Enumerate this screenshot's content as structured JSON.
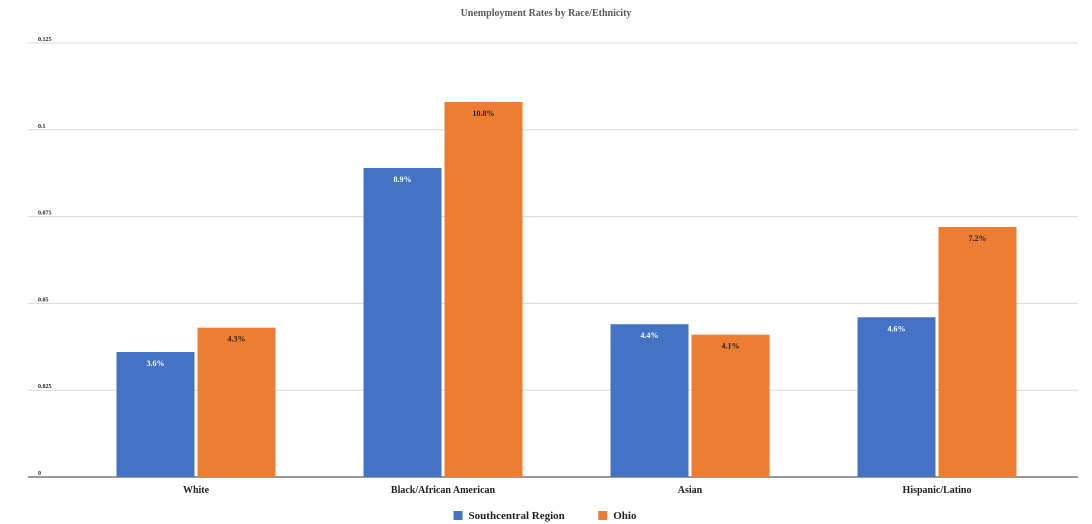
{
  "chart_data": {
    "type": "bar",
    "title": "Unemployment Rates by Race/Ethnicity",
    "xlabel": "",
    "ylabel": "",
    "categories": [
      "White",
      "Black/African American",
      "Asian",
      "Hispanic/Latino"
    ],
    "series": [
      {
        "name": "Southcentral Region",
        "values": [
          0.036,
          0.089,
          0.044,
          0.046
        ],
        "labels": [
          "3.6%",
          "8.9%",
          "4.4%",
          "4.6%"
        ],
        "color": "#4472c4",
        "label_color": "#ffffff"
      },
      {
        "name": "Ohio",
        "values": [
          0.043,
          0.108,
          0.041,
          0.072
        ],
        "labels": [
          "4.3%",
          "10.8%",
          "4.1%",
          "7.2%"
        ],
        "color": "#ed7d31",
        "label_color": "#222222"
      }
    ],
    "ylim": [
      0,
      0.125
    ],
    "yticks": [
      0,
      0.025,
      0.05,
      0.075,
      0.1,
      0.125
    ],
    "ytick_labels": [
      "0",
      "0.025",
      "0.05",
      "0.075",
      "0.1",
      "0.125"
    ],
    "grid": true,
    "legend_position": "bottom-center"
  }
}
